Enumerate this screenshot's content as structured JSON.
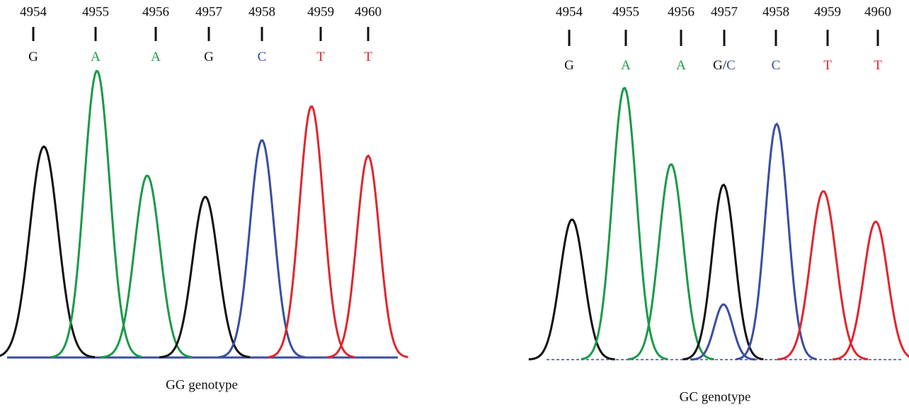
{
  "panels": [
    {
      "positions": [
        4954,
        4955,
        4956,
        4957,
        4958,
        4959,
        4960
      ],
      "bases": [
        [
          "G"
        ],
        [
          "A"
        ],
        [
          "A"
        ],
        [
          "G"
        ],
        [
          "C"
        ],
        [
          "T"
        ],
        [
          "T"
        ]
      ],
      "caption": "GG genotype"
    },
    {
      "positions": [
        4954,
        4955,
        4956,
        4957,
        4958,
        4959,
        4960
      ],
      "bases": [
        [
          "G"
        ],
        [
          "A"
        ],
        [
          "A"
        ],
        [
          "G/",
          "C"
        ],
        [
          "C"
        ],
        [
          "T"
        ],
        [
          "T"
        ]
      ],
      "caption": "GC genotype"
    }
  ]
}
